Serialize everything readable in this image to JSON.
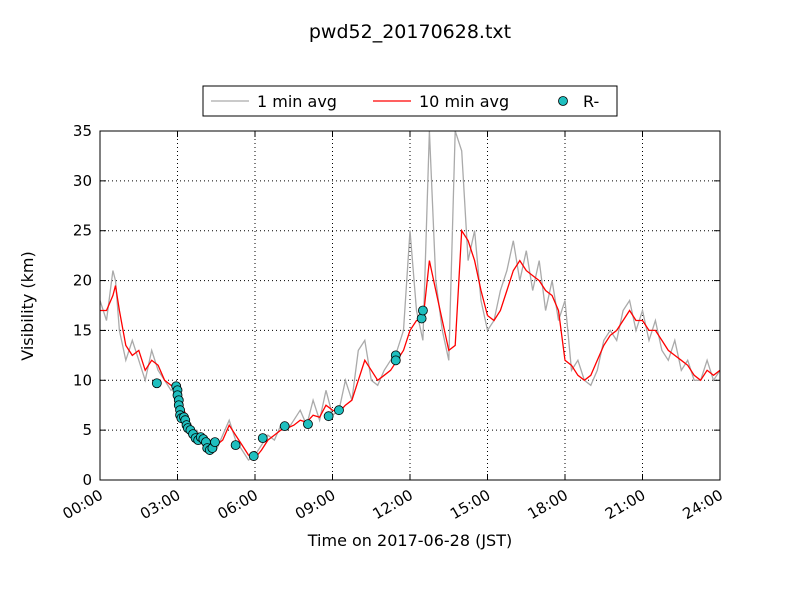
{
  "chart_data": {
    "type": "line",
    "title": "pwd52_20170628.txt",
    "x_label": "Time on 2017-06-28 (JST)",
    "y_label": "Visibility (km)",
    "xlim": [
      0,
      24
    ],
    "xticks": [
      {
        "value": 0,
        "label": "00:00"
      },
      {
        "value": 3,
        "label": "03:00"
      },
      {
        "value": 6,
        "label": "06:00"
      },
      {
        "value": 9,
        "label": "09:00"
      },
      {
        "value": 12,
        "label": "12:00"
      },
      {
        "value": 15,
        "label": "15:00"
      },
      {
        "value": 18,
        "label": "18:00"
      },
      {
        "value": 21,
        "label": "21:00"
      },
      {
        "value": 24,
        "label": "24:00"
      }
    ],
    "ylim": [
      0,
      35
    ],
    "yticks": [
      0,
      5,
      10,
      15,
      20,
      25,
      30,
      35
    ],
    "grid": true,
    "legend": "upper center",
    "series": [
      {
        "name": "1 min avg",
        "type": "line",
        "color": "#aaaaaa",
        "x": [
          0,
          0.25,
          0.5,
          0.6,
          0.75,
          1,
          1.25,
          1.5,
          1.75,
          2,
          2.25,
          2.5,
          2.75,
          3,
          3.25,
          3.5,
          3.75,
          4,
          4.25,
          4.5,
          4.75,
          5,
          5.25,
          5.5,
          5.75,
          6,
          6.25,
          6.5,
          6.75,
          7,
          7.25,
          7.5,
          7.75,
          8,
          8.25,
          8.5,
          8.75,
          9,
          9.25,
          9.5,
          9.75,
          10,
          10.25,
          10.5,
          10.75,
          11,
          11.25,
          11.5,
          11.75,
          12,
          12.25,
          12.5,
          12.75,
          13,
          13.25,
          13.5,
          13.75,
          14,
          14.25,
          14.5,
          14.75,
          15,
          15.25,
          15.5,
          15.75,
          16,
          16.25,
          16.5,
          16.75,
          17,
          17.25,
          17.5,
          17.75,
          18,
          18.25,
          18.5,
          18.75,
          19,
          19.25,
          19.5,
          19.75,
          20,
          20.25,
          20.5,
          20.75,
          21,
          21.25,
          21.5,
          21.75,
          22,
          22.25,
          22.5,
          22.75,
          23,
          23.25,
          23.5,
          23.75,
          24
        ],
        "values": [
          18,
          16,
          21,
          20,
          15,
          12,
          14,
          12,
          10,
          13,
          11,
          10,
          9,
          9.5,
          6.5,
          5,
          5,
          3.5,
          4,
          3,
          4.5,
          6,
          4,
          3,
          2,
          2.5,
          3.5,
          4.5,
          4,
          5.5,
          5,
          6,
          7,
          5.5,
          8,
          6,
          9,
          6.5,
          7,
          10,
          8,
          13,
          14,
          10,
          9.5,
          11,
          12,
          13,
          15,
          25,
          17,
          14,
          35,
          20,
          15,
          12,
          35,
          33,
          22,
          25,
          18,
          15,
          16,
          19,
          21,
          24,
          20,
          23,
          19,
          22,
          17,
          20,
          16,
          18,
          11,
          12,
          10,
          9.5,
          11,
          14,
          15,
          14,
          17,
          18,
          15,
          17,
          14,
          16,
          13,
          12,
          14,
          11,
          12,
          10,
          10,
          12,
          10,
          11
        ]
      },
      {
        "name": "10 min avg",
        "type": "line",
        "color": "#ff0000",
        "x": [
          0,
          0.25,
          0.5,
          0.6,
          0.75,
          1,
          1.25,
          1.5,
          1.75,
          2,
          2.25,
          2.5,
          2.75,
          3,
          3.25,
          3.5,
          3.75,
          4,
          4.25,
          4.5,
          4.75,
          5,
          5.25,
          5.5,
          5.75,
          6,
          6.25,
          6.5,
          6.75,
          7,
          7.25,
          7.5,
          7.75,
          8,
          8.25,
          8.5,
          8.75,
          9,
          9.25,
          9.5,
          9.75,
          10,
          10.25,
          10.5,
          10.75,
          11,
          11.25,
          11.5,
          11.75,
          12,
          12.25,
          12.5,
          12.75,
          13,
          13.25,
          13.5,
          13.75,
          14,
          14.25,
          14.5,
          14.75,
          15,
          15.25,
          15.5,
          15.75,
          16,
          16.25,
          16.5,
          16.75,
          17,
          17.25,
          17.5,
          17.75,
          18,
          18.25,
          18.5,
          18.75,
          19,
          19.25,
          19.5,
          19.75,
          20,
          20.25,
          20.5,
          20.75,
          21,
          21.25,
          21.5,
          21.75,
          22,
          22.25,
          22.5,
          22.75,
          23,
          23.25,
          23.5,
          23.75,
          24
        ],
        "values": [
          17,
          17,
          18.5,
          19.5,
          17,
          13.5,
          12.5,
          13,
          11,
          12,
          11.5,
          10,
          9.5,
          9,
          7,
          5.5,
          4.5,
          4,
          3.8,
          3.5,
          4,
          5.5,
          4.5,
          3.5,
          2.5,
          2.2,
          3,
          4,
          4.5,
          5,
          5.2,
          5.5,
          6,
          5.8,
          6.5,
          6.3,
          7.5,
          7,
          6.8,
          7.5,
          8,
          10,
          12,
          11,
          10,
          10.5,
          11,
          12,
          13,
          15,
          16,
          16,
          22,
          19,
          16,
          13,
          13.5,
          25,
          24,
          22,
          19,
          16.5,
          16,
          17,
          19,
          21,
          22,
          21,
          20.5,
          20,
          19,
          18.5,
          17,
          12,
          11.5,
          10.5,
          10,
          10.5,
          12,
          13.5,
          14.5,
          15,
          16,
          17,
          16,
          16,
          15,
          15,
          14,
          13,
          12.5,
          12,
          11.5,
          10.5,
          10,
          11,
          10.5,
          11
        ]
      },
      {
        "name": "R-",
        "type": "scatter",
        "color": "#1fbfbf",
        "x": [
          2.2,
          2.95,
          3.0,
          3.0,
          3.05,
          3.05,
          3.1,
          3.1,
          3.15,
          3.25,
          3.3,
          3.35,
          3.4,
          3.5,
          3.6,
          3.7,
          3.8,
          3.9,
          4.0,
          4.1,
          4.15,
          4.25,
          4.35,
          4.45,
          5.25,
          5.95,
          6.3,
          7.15,
          8.05,
          8.85,
          9.25,
          11.45,
          11.45,
          12.45,
          12.5
        ],
        "values": [
          9.7,
          9.4,
          9,
          8.5,
          8,
          7.5,
          7,
          6.5,
          6.2,
          6.3,
          6,
          5.5,
          5.2,
          5,
          4.6,
          4.2,
          4,
          4.3,
          4.1,
          3.8,
          3.2,
          3,
          3.2,
          3.8,
          3.5,
          2.4,
          4.2,
          5.4,
          5.6,
          6.4,
          7,
          12.5,
          12,
          16.2,
          17
        ]
      }
    ]
  }
}
